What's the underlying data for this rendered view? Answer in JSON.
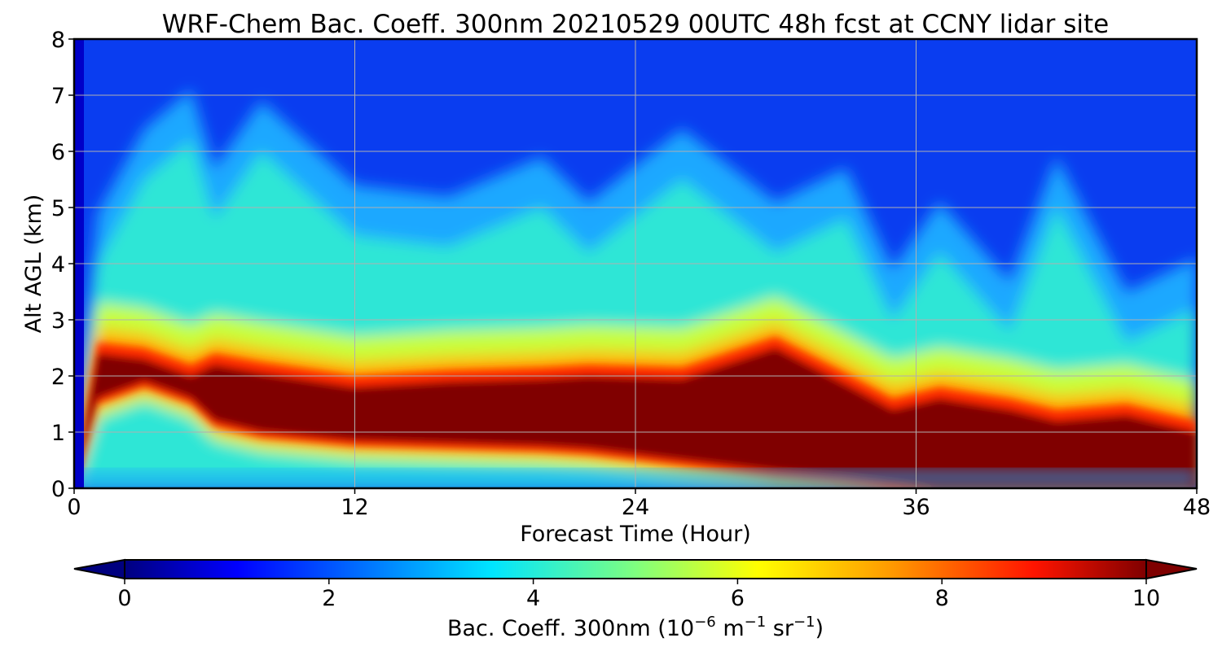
{
  "chart_data": {
    "type": "heatmap",
    "title": "WRF-Chem Bac. Coeff. 300nm  20210529 00UTC 48h fcst at CCNY lidar site",
    "xlabel": "Forecast Time (Hour)",
    "ylabel": "Alt AGL (km)",
    "xlim": [
      0,
      48
    ],
    "ylim": [
      0,
      8
    ],
    "x_ticks": [
      "0",
      "12",
      "24",
      "36",
      "48"
    ],
    "y_ticks": [
      "0",
      "1",
      "2",
      "3",
      "4",
      "5",
      "6",
      "7",
      "8"
    ],
    "grid": true,
    "colormap": "jet",
    "colorbar": {
      "label_main": "Bac. Coeff. 300nm  (10",
      "label_exp1": "−6",
      "label_mid": " m",
      "label_exp2": "−1",
      "label_mid2": " sr",
      "label_exp3": "−1",
      "label_end": ")",
      "range": [
        0,
        10
      ],
      "ticks": [
        "0",
        "2",
        "4",
        "6",
        "8",
        "10"
      ],
      "extend": "both",
      "orientation": "horizontal"
    },
    "layer_profile": {
      "hours": [
        0,
        1,
        3,
        5,
        6,
        8,
        12,
        16,
        20,
        22,
        26,
        30,
        33,
        35,
        37,
        40,
        42,
        45,
        48
      ],
      "core_top_km": [
        0.0,
        2.4,
        2.3,
        2.0,
        2.2,
        2.05,
        1.8,
        1.9,
        1.95,
        2.0,
        1.95,
        2.5,
        1.85,
        1.4,
        1.6,
        1.4,
        1.2,
        1.3,
        1.0
      ],
      "core_bot_km": [
        0.0,
        1.6,
        1.9,
        1.6,
        1.2,
        1.0,
        0.85,
        0.8,
        0.75,
        0.7,
        0.5,
        0.3,
        0.2,
        0.1,
        0.0,
        0.0,
        0.0,
        0.0,
        0.0
      ],
      "aerosol_top_km": [
        0.0,
        4.0,
        5.5,
        6.2,
        4.8,
        6.0,
        4.5,
        4.3,
        5.0,
        4.2,
        5.5,
        4.2,
        4.8,
        3.0,
        4.2,
        2.8,
        5.0,
        2.6,
        3.2
      ]
    }
  }
}
